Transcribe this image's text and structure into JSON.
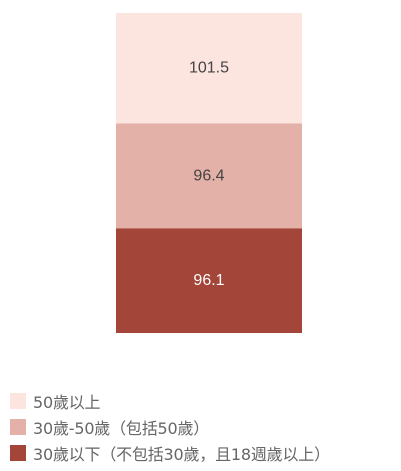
{
  "chart_data": {
    "type": "bar",
    "stacked": true,
    "orientation": "vertical",
    "title": "",
    "legend_position": "bottom-left",
    "grid": false,
    "series": [
      {
        "name": "50歲以上",
        "values": [
          101.5
        ],
        "label": "101.5",
        "color": "#FCE4DF",
        "label_color": "#444444"
      },
      {
        "name": "30歲-50歲（包括50歲）",
        "values": [
          96.4
        ],
        "label": "96.4",
        "color": "#E4B1A9",
        "label_color": "#444444"
      },
      {
        "name": "30歲以下（不包括30歲，且18週歲以上）",
        "values": [
          96.1
        ],
        "label": "96.1",
        "color": "#A34538",
        "label_color": "#FFFFFF"
      }
    ]
  }
}
